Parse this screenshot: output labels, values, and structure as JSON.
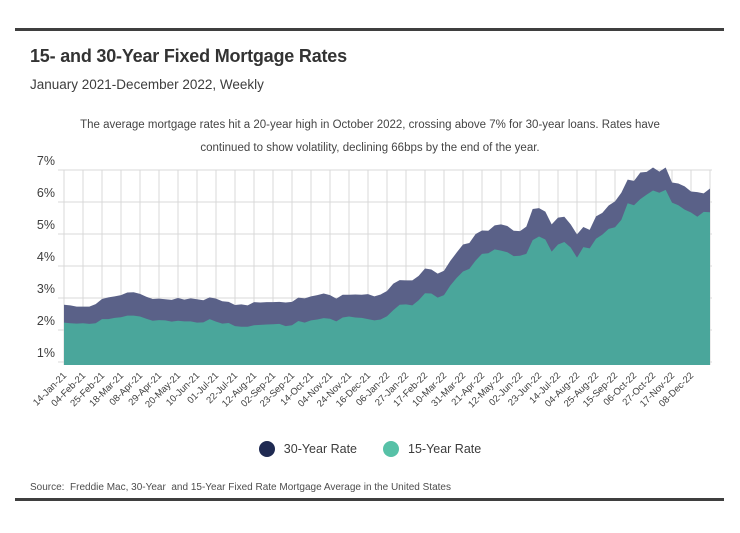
{
  "header": {
    "title": "15- and 30-Year Fixed Mortgage Rates",
    "subtitle": "January 2021-December 2022, Weekly"
  },
  "annotation": {
    "line1": "The average mortgage rates hit a 20-year high in October 2022, crossing above 7% for 30-year loans. Rates have",
    "line2": "continued to show volatility, declining 66bps by the end of the year."
  },
  "chart_data": {
    "type": "area",
    "title": "15- and 30-Year Fixed Mortgage Rates",
    "subtitle": "January 2021-December 2022, Weekly",
    "xlabel": "",
    "ylabel": "",
    "ylim": [
      0.9,
      7.3
    ],
    "grid": true,
    "legend_position": "bottom",
    "yticks": [
      "7%",
      "6%",
      "5%",
      "4%",
      "3%",
      "2%",
      "1%"
    ],
    "ytick_values": [
      7,
      6,
      5,
      4,
      3,
      2,
      1
    ],
    "xtick_every": 3,
    "x": [
      "14-Jan-21",
      "21-Jan-21",
      "28-Jan-21",
      "04-Feb-21",
      "11-Feb-21",
      "18-Feb-21",
      "25-Feb-21",
      "04-Mar-21",
      "11-Mar-21",
      "18-Mar-21",
      "25-Mar-21",
      "01-Apr-21",
      "08-Apr-21",
      "15-Apr-21",
      "22-Apr-21",
      "29-Apr-21",
      "06-May-21",
      "13-May-21",
      "20-May-21",
      "27-May-21",
      "03-Jun-21",
      "10-Jun-21",
      "17-Jun-21",
      "24-Jun-21",
      "01-Jul-21",
      "08-Jul-21",
      "15-Jul-21",
      "22-Jul-21",
      "29-Jul-21",
      "05-Aug-21",
      "12-Aug-21",
      "19-Aug-21",
      "26-Aug-21",
      "02-Sep-21",
      "09-Sep-21",
      "16-Sep-21",
      "23-Sep-21",
      "30-Sep-21",
      "07-Oct-21",
      "14-Oct-21",
      "21-Oct-21",
      "28-Oct-21",
      "04-Nov-21",
      "10-Nov-21",
      "18-Nov-21",
      "24-Nov-21",
      "02-Dec-21",
      "09-Dec-21",
      "16-Dec-21",
      "23-Dec-21",
      "30-Dec-21",
      "06-Jan-22",
      "13-Jan-22",
      "20-Jan-22",
      "27-Jan-22",
      "03-Feb-22",
      "10-Feb-22",
      "17-Feb-22",
      "24-Feb-22",
      "03-Mar-22",
      "10-Mar-22",
      "17-Mar-22",
      "24-Mar-22",
      "31-Mar-22",
      "07-Apr-22",
      "14-Apr-22",
      "21-Apr-22",
      "28-Apr-22",
      "05-May-22",
      "12-May-22",
      "19-May-22",
      "26-May-22",
      "02-Jun-22",
      "09-Jun-22",
      "16-Jun-22",
      "23-Jun-22",
      "30-Jun-22",
      "07-Jul-22",
      "14-Jul-22",
      "21-Jul-22",
      "28-Jul-22",
      "04-Aug-22",
      "11-Aug-22",
      "18-Aug-22",
      "25-Aug-22",
      "01-Sep-22",
      "08-Sep-22",
      "15-Sep-22",
      "22-Sep-22",
      "29-Sep-22",
      "06-Oct-22",
      "13-Oct-22",
      "20-Oct-22",
      "27-Oct-22",
      "03-Nov-22",
      "10-Nov-22",
      "17-Nov-22",
      "23-Nov-22",
      "01-Dec-22",
      "08-Dec-22",
      "15-Dec-22",
      "22-Dec-22",
      "29-Dec-22"
    ],
    "xtick_labels": [
      "14-Jan-21",
      "04-Feb-21",
      "25-Feb-21",
      "18-Mar-21",
      "08-Apr-21",
      "29-Apr-21",
      "20-May-21",
      "10-Jun-21",
      "01-Jul-21",
      "22-Jul-21",
      "12-Aug-21",
      "02-Sep-21",
      "23-Sep-21",
      "14-Oct-21",
      "04-Nov-21",
      "24-Nov-21",
      "16-Dec-21",
      "06-Jan-22",
      "27-Jan-22",
      "17-Feb-22",
      "10-Mar-22",
      "31-Mar-22",
      "21-Apr-22",
      "12-May-22",
      "02-Jun-22",
      "23-Jun-22",
      "14-Jul-22",
      "04-Aug-22",
      "25-Aug-22",
      "15-Sep-22",
      "06-Oct-22",
      "27-Oct-22",
      "17-Nov-22",
      "08-Dec-22"
    ],
    "series": [
      {
        "name": "30-Year Rate",
        "area_color": "#5a6188",
        "legend_color": "#1f2a52",
        "values": [
          2.79,
          2.77,
          2.73,
          2.73,
          2.73,
          2.81,
          2.97,
          3.02,
          3.05,
          3.09,
          3.17,
          3.18,
          3.13,
          3.04,
          2.97,
          2.98,
          2.96,
          2.94,
          3.0,
          2.95,
          2.99,
          2.96,
          2.93,
          3.02,
          2.98,
          2.9,
          2.88,
          2.78,
          2.8,
          2.77,
          2.87,
          2.86,
          2.87,
          2.87,
          2.88,
          2.86,
          2.88,
          3.01,
          2.99,
          3.05,
          3.09,
          3.14,
          3.09,
          2.98,
          3.1,
          3.1,
          3.11,
          3.1,
          3.12,
          3.05,
          3.11,
          3.22,
          3.45,
          3.56,
          3.55,
          3.55,
          3.69,
          3.92,
          3.89,
          3.76,
          3.85,
          4.16,
          4.42,
          4.67,
          4.72,
          5.0,
          5.11,
          5.1,
          5.27,
          5.3,
          5.25,
          5.1,
          5.09,
          5.23,
          5.78,
          5.81,
          5.7,
          5.3,
          5.51,
          5.54,
          5.3,
          4.99,
          5.22,
          5.13,
          5.55,
          5.66,
          5.89,
          6.02,
          6.29,
          6.7,
          6.66,
          6.92,
          6.94,
          7.08,
          6.95,
          7.08,
          6.61,
          6.58,
          6.49,
          6.33,
          6.31,
          6.27,
          6.42
        ]
      },
      {
        "name": "15-Year Rate",
        "area_color": "#4aa69b",
        "legend_color": "#57c1a7",
        "values": [
          2.23,
          2.21,
          2.2,
          2.21,
          2.19,
          2.21,
          2.34,
          2.34,
          2.38,
          2.4,
          2.45,
          2.45,
          2.42,
          2.35,
          2.29,
          2.31,
          2.3,
          2.26,
          2.29,
          2.27,
          2.27,
          2.23,
          2.24,
          2.34,
          2.26,
          2.2,
          2.22,
          2.12,
          2.1,
          2.1,
          2.15,
          2.16,
          2.17,
          2.18,
          2.19,
          2.12,
          2.15,
          2.28,
          2.23,
          2.3,
          2.33,
          2.37,
          2.35,
          2.27,
          2.39,
          2.42,
          2.39,
          2.38,
          2.34,
          2.3,
          2.33,
          2.43,
          2.62,
          2.79,
          2.8,
          2.77,
          2.93,
          3.15,
          3.14,
          3.01,
          3.09,
          3.39,
          3.63,
          3.83,
          3.91,
          4.17,
          4.38,
          4.4,
          4.52,
          4.48,
          4.43,
          4.31,
          4.32,
          4.38,
          4.81,
          4.92,
          4.83,
          4.45,
          4.67,
          4.75,
          4.58,
          4.26,
          4.59,
          4.55,
          4.85,
          4.98,
          5.16,
          5.21,
          5.44,
          5.96,
          5.9,
          6.09,
          6.23,
          6.36,
          6.29,
          6.38,
          5.98,
          5.9,
          5.76,
          5.67,
          5.54,
          5.69,
          5.68
        ]
      }
    ]
  },
  "footer": {
    "source": "Source:  Freddie Mac, 30-Year  and 15-Year Fixed Rate Mortgage Average in the United States"
  },
  "colors": {
    "rule": "#3f3f3f",
    "grid": "#d8d8d8",
    "tick_text": "#3d3d3d",
    "area_30yr": "#5a6188",
    "area_15yr": "#4aa69b",
    "legend_30yr": "#1f2a52",
    "legend_15yr": "#57c1a7"
  }
}
